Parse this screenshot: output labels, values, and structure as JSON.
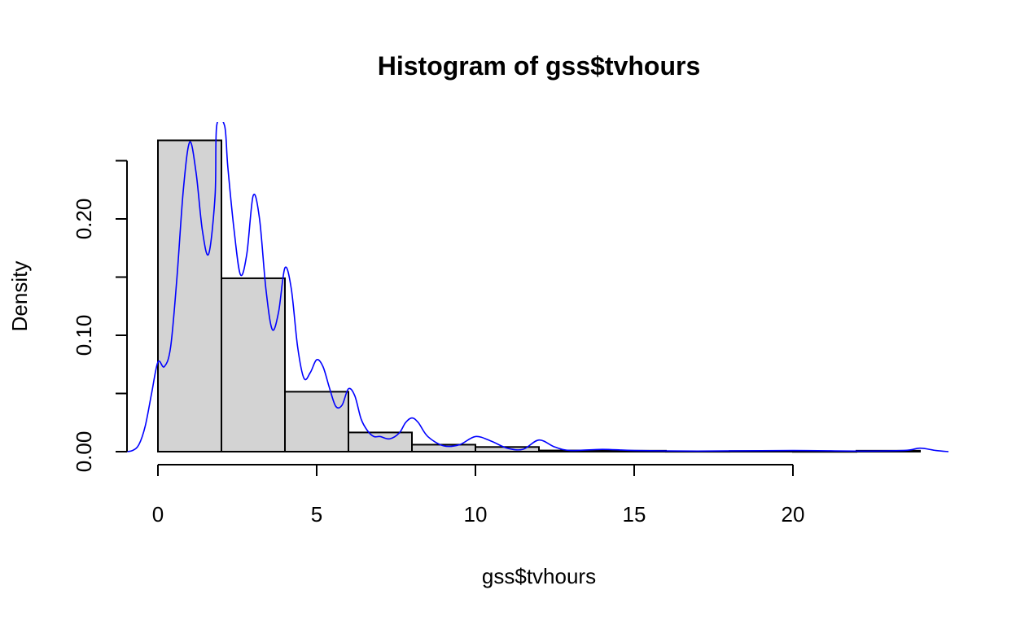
{
  "colors": {
    "bar_fill": "#d3d3d3",
    "bar_stroke": "#000000",
    "density_line": "#0000ff",
    "background": "#ffffff"
  },
  "chart_data": {
    "type": "bar",
    "subtype": "histogram-with-density",
    "title": "Histogram of gss$tvhours",
    "xlabel": "gss$tvhours",
    "ylabel": "Density",
    "xlim": [
      -1.0,
      24.9
    ],
    "ylim": [
      0,
      0.28
    ],
    "x_ticks": [
      0,
      5,
      10,
      15,
      20
    ],
    "x_tick_labels": [
      "0",
      "5",
      "10",
      "15",
      "20"
    ],
    "y_ticks": [
      0.0,
      0.05,
      0.1,
      0.15,
      0.2,
      0.25
    ],
    "y_tick_labels": [
      "0.00",
      "",
      "0.10",
      "",
      "0.20",
      ""
    ],
    "bins": [
      {
        "start": 0,
        "end": 2,
        "density": 0.2675
      },
      {
        "start": 2,
        "end": 4,
        "density": 0.149
      },
      {
        "start": 4,
        "end": 6,
        "density": 0.0515
      },
      {
        "start": 6,
        "end": 8,
        "density": 0.0165
      },
      {
        "start": 8,
        "end": 10,
        "density": 0.006
      },
      {
        "start": 10,
        "end": 12,
        "density": 0.004
      },
      {
        "start": 12,
        "end": 14,
        "density": 0.001
      },
      {
        "start": 14,
        "end": 16,
        "density": 0.0008
      },
      {
        "start": 16,
        "end": 18,
        "density": 0.0003
      },
      {
        "start": 18,
        "end": 20,
        "density": 0.0005
      },
      {
        "start": 20,
        "end": 22,
        "density": 0.0002
      },
      {
        "start": 22,
        "end": 24,
        "density": 0.0008
      }
    ],
    "density_curve": {
      "name": "",
      "x": [
        -1.0,
        -0.8,
        -0.6,
        -0.4,
        -0.2,
        0.0,
        0.2,
        0.4,
        0.6,
        0.8,
        1.0,
        1.2,
        1.4,
        1.6,
        1.8,
        1.85,
        2.1,
        2.2,
        2.4,
        2.6,
        2.8,
        3.0,
        3.2,
        3.4,
        3.6,
        3.8,
        4.0,
        4.2,
        4.4,
        4.6,
        4.8,
        5.0,
        5.2,
        5.4,
        5.6,
        5.8,
        6.0,
        6.2,
        6.4,
        6.6,
        6.8,
        7.0,
        7.3,
        7.6,
        7.8,
        8.0,
        8.2,
        8.5,
        9.0,
        9.5,
        10.0,
        10.5,
        11.0,
        11.5,
        12.0,
        12.5,
        13.0,
        14.0,
        15.0,
        17.0,
        20.0,
        22.0,
        23.5,
        24.0,
        24.5,
        24.9
      ],
      "y": [
        0.0,
        0.001,
        0.006,
        0.022,
        0.05,
        0.077,
        0.073,
        0.09,
        0.15,
        0.225,
        0.266,
        0.24,
        0.19,
        0.17,
        0.22,
        0.28,
        0.28,
        0.245,
        0.19,
        0.152,
        0.17,
        0.22,
        0.2,
        0.14,
        0.105,
        0.12,
        0.158,
        0.14,
        0.09,
        0.063,
        0.068,
        0.079,
        0.073,
        0.055,
        0.039,
        0.04,
        0.054,
        0.048,
        0.028,
        0.018,
        0.013,
        0.013,
        0.011,
        0.016,
        0.025,
        0.029,
        0.025,
        0.013,
        0.005,
        0.006,
        0.013,
        0.009,
        0.003,
        0.002,
        0.01,
        0.004,
        0.001,
        0.002,
        0.001,
        0.0005,
        0.001,
        0.0005,
        0.001,
        0.003,
        0.001,
        0.0
      ]
    }
  }
}
